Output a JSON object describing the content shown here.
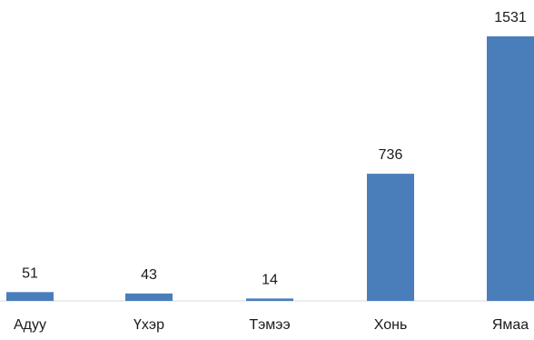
{
  "chart_data": {
    "type": "bar",
    "categories": [
      "Адуу",
      "Үхэр",
      "Тэмээ",
      "Хонь",
      "Ямаа"
    ],
    "values": [
      51,
      43,
      14,
      736,
      1531
    ],
    "data_labels": [
      "51",
      "43",
      "14",
      "736",
      "1531"
    ],
    "title": "",
    "xlabel": "",
    "ylabel": "",
    "ylim": [
      0,
      1531
    ],
    "grid": false,
    "legend": "none",
    "bar_color": "#4a7ebb",
    "axis_color": "#d9d9d9"
  }
}
